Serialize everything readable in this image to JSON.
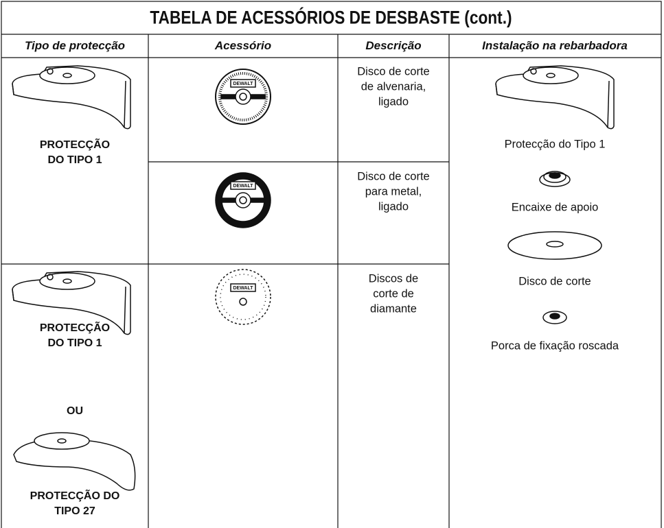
{
  "header": {
    "title": "TABELA DE ACESSÓRIOS DE DESBASTE (cont.)"
  },
  "table": {
    "headers": [
      "Tipo de protecção",
      "Acessório",
      "Descrição",
      "Instalação na rebarbadora"
    ],
    "guards": [
      [
        "PROTECÇÃO",
        "DO TIPO 1"
      ],
      [
        "PROTECÇÃO",
        "DO TIPO 1"
      ],
      [
        "OU"
      ],
      [
        "PROTECÇÃO DO",
        "TIPO 27"
      ]
    ],
    "accessory_brand": "DEWALT",
    "descriptions": [
      [
        "Disco de corte",
        "de alvenaria,",
        "ligado"
      ],
      [
        "Disco de corte",
        "para metal,",
        "ligado"
      ],
      [
        "Discos de",
        "corte de",
        "diamante"
      ]
    ],
    "installation": [
      "Protecção do Tipo 1",
      "Encaixe de apoio",
      "Disco de corte",
      "Porca de fixação roscada"
    ]
  }
}
